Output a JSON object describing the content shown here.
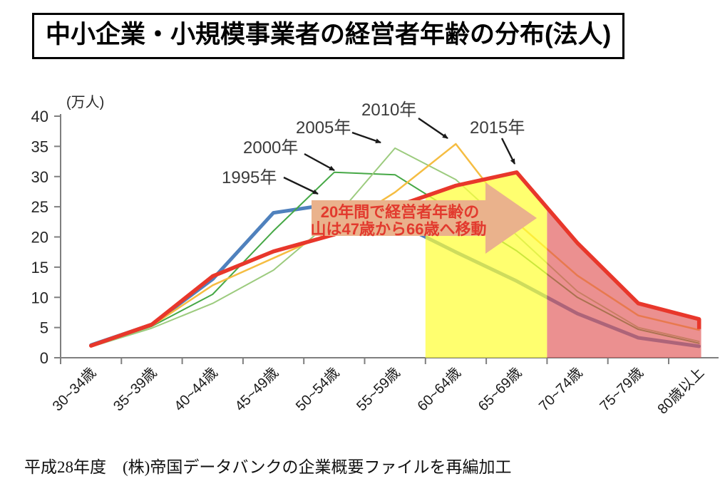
{
  "page": {
    "title": "中小企業・小規模事業者の経営者年齢の分布(法人)",
    "source_note": "平成28年度　(株)帝国データバンクの企業概要ファイルを再編加工"
  },
  "annotation": {
    "line1": "20年間で経営者年齢の",
    "line2": "山は47歳から66歳へ移動",
    "arrow_color": "#EAB28C",
    "text_color": "#E23A2E"
  },
  "chart_data": {
    "type": "line",
    "title": "中小企業・小規模事業者の経営者年齢の分布(法人)",
    "unit_label": "(万人)",
    "xlabel": "",
    "ylabel": "万人",
    "ylim": [
      0,
      40
    ],
    "yticks": [
      0,
      5,
      10,
      15,
      20,
      25,
      30,
      35,
      40
    ],
    "grid": false,
    "legend_position": "inline-labels",
    "categories": [
      "30~34歳",
      "35~39歳",
      "40~44歳",
      "45~49歳",
      "50~54歳",
      "55~59歳",
      "60~64歳",
      "65~69歳",
      "70~74歳",
      "75~79歳",
      "80歳以上"
    ],
    "series": [
      {
        "name": "1995年",
        "color": "#4F81BD",
        "width": 5,
        "values": [
          2.1,
          5.5,
          13.0,
          24.0,
          25.5,
          22.5,
          17.5,
          12.7,
          7.3,
          3.3,
          1.9
        ]
      },
      {
        "name": "2000年",
        "color": "#46A846",
        "width": 2,
        "values": [
          1.9,
          5.2,
          10.5,
          21.0,
          30.7,
          30.3,
          24.0,
          17.7,
          10.0,
          4.7,
          2.4
        ]
      },
      {
        "name": "2005年",
        "color": "#9CCB7E",
        "width": 2,
        "values": [
          1.8,
          4.9,
          9.0,
          14.5,
          23.0,
          34.7,
          29.5,
          20.3,
          11.0,
          5.0,
          2.7
        ]
      },
      {
        "name": "2010年",
        "color": "#F5BD42",
        "width": 2.5,
        "values": [
          1.9,
          5.3,
          12.0,
          16.5,
          21.0,
          27.4,
          35.4,
          22.4,
          13.6,
          7.0,
          4.6
        ]
      },
      {
        "name": "2015年",
        "color": "#E8372B",
        "width": 5.5,
        "values": [
          2.0,
          5.5,
          13.5,
          17.6,
          20.4,
          25.0,
          28.5,
          30.7,
          19.0,
          9.0,
          6.4
        ]
      }
    ],
    "highlights": [
      {
        "name": "yellow-band",
        "categories": [
          "60~64歳",
          "65~69歳"
        ],
        "color": "rgba(255,255,55,0.72)",
        "end_at_data": false
      },
      {
        "name": "pink-band",
        "categories": [
          "70~74歳",
          "75~79歳",
          "80歳以上"
        ],
        "color": "rgba(225,85,85,0.65)",
        "end_at_data": true
      }
    ],
    "axis_color": "#7F7F7F",
    "peak_info": {
      "1995_peak_age": "47歳",
      "2015_peak_age": "66歳"
    }
  }
}
